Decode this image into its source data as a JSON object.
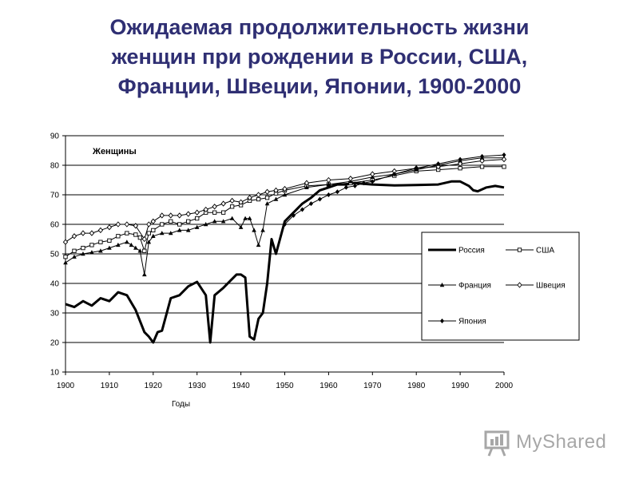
{
  "slide": {
    "title_lines": [
      "Ожидаемая продолжительность жизни",
      "женщин при рождении в России, США,",
      "Франции, Швеции, Японии, 1900-2000"
    ]
  },
  "logo": {
    "text": "MyShared"
  },
  "chart_data": {
    "type": "line",
    "title": "Женщины",
    "xlabel": "Годы",
    "ylabel": "",
    "xlim": [
      1900,
      2000
    ],
    "ylim": [
      10,
      90
    ],
    "x_ticks": [
      1900,
      1910,
      1920,
      1930,
      1940,
      1950,
      1960,
      1970,
      1980,
      1990,
      2000
    ],
    "y_ticks": [
      10,
      20,
      30,
      40,
      50,
      60,
      70,
      80,
      90
    ],
    "grid": "horizontal",
    "legend_position": "right",
    "series": [
      {
        "name": "Россия",
        "color": "#000000",
        "marker": "none",
        "line_width": 3,
        "x": [
          1900,
          1902,
          1904,
          1906,
          1908,
          1910,
          1912,
          1914,
          1916,
          1918,
          1919,
          1920,
          1921,
          1922,
          1924,
          1926,
          1928,
          1930,
          1932,
          1933,
          1934,
          1936,
          1938,
          1939,
          1940,
          1941,
          1942,
          1943,
          1944,
          1945,
          1946,
          1947,
          1948,
          1950,
          1952,
          1954,
          1956,
          1958,
          1960,
          1962,
          1964,
          1966,
          1968,
          1970,
          1975,
          1980,
          1985,
          1988,
          1990,
          1992,
          1993,
          1994,
          1996,
          1998,
          2000
        ],
        "y": [
          33,
          32,
          34,
          32.5,
          35,
          34,
          37,
          36,
          31,
          23.5,
          22,
          20,
          23.5,
          24,
          35,
          36,
          39,
          40.5,
          36,
          20,
          36,
          38.5,
          41.5,
          43,
          43,
          42,
          22,
          21,
          28,
          30,
          40,
          55,
          50,
          61,
          64,
          67,
          69,
          71.5,
          72.5,
          73.5,
          73.5,
          74,
          73.7,
          73.5,
          73.2,
          73.3,
          73.5,
          74.5,
          74.5,
          73,
          71.5,
          71.2,
          72.5,
          73,
          72.5
        ]
      },
      {
        "name": "США",
        "color": "#000000",
        "marker": "square",
        "line_width": 1,
        "x": [
          1900,
          1902,
          1904,
          1906,
          1908,
          1910,
          1912,
          1914,
          1916,
          1917,
          1918,
          1919,
          1920,
          1922,
          1924,
          1926,
          1928,
          1930,
          1932,
          1934,
          1936,
          1938,
          1940,
          1942,
          1944,
          1946,
          1948,
          1950,
          1955,
          1960,
          1965,
          1970,
          1975,
          1980,
          1985,
          1990,
          1995,
          2000
        ],
        "y": [
          49,
          51,
          52,
          53,
          54,
          54.5,
          56,
          57,
          56.5,
          55.5,
          51,
          57,
          58,
          60,
          61,
          60,
          61,
          62,
          64,
          64,
          64,
          66,
          66.5,
          68,
          68.5,
          69,
          70.5,
          71.5,
          73,
          73.5,
          74,
          75,
          76.5,
          78,
          78.5,
          79,
          79.5,
          79.5
        ]
      },
      {
        "name": "Франция",
        "color": "#000000",
        "marker": "triangle",
        "line_width": 1,
        "x": [
          1900,
          1902,
          1904,
          1906,
          1908,
          1910,
          1912,
          1914,
          1915,
          1916,
          1917,
          1918,
          1919,
          1920,
          1922,
          1924,
          1926,
          1928,
          1930,
          1932,
          1934,
          1936,
          1938,
          1940,
          1941,
          1942,
          1943,
          1944,
          1945,
          1946,
          1948,
          1950,
          1955,
          1960,
          1965,
          1970,
          1975,
          1980,
          1985,
          1990,
          1995,
          2000
        ],
        "y": [
          47,
          49,
          50,
          50.5,
          51,
          52,
          53,
          54,
          53,
          52,
          51,
          43,
          54,
          56,
          57,
          57,
          58,
          58,
          59,
          60,
          61,
          61,
          62,
          59,
          62,
          62,
          58,
          53,
          58,
          67,
          68.5,
          70,
          72.5,
          73.5,
          74.5,
          76,
          77,
          78.5,
          80,
          81.5,
          82.5,
          82.5
        ]
      },
      {
        "name": "Швеция",
        "color": "#000000",
        "marker": "diamond",
        "line_width": 1,
        "x": [
          1900,
          1902,
          1904,
          1906,
          1908,
          1910,
          1912,
          1914,
          1916,
          1918,
          1919,
          1920,
          1922,
          1924,
          1926,
          1928,
          1930,
          1932,
          1934,
          1936,
          1938,
          1940,
          1942,
          1944,
          1946,
          1948,
          1950,
          1955,
          1960,
          1965,
          1970,
          1975,
          1980,
          1985,
          1990,
          1995,
          2000
        ],
        "y": [
          54,
          56,
          57,
          57,
          58,
          59,
          60,
          60,
          59.5,
          55,
          60,
          61,
          63,
          63,
          63,
          63.5,
          64,
          65,
          66,
          67,
          68,
          67.5,
          69,
          70,
          71,
          71.5,
          72,
          74,
          75,
          75.5,
          77,
          78,
          79,
          79.5,
          80.5,
          81.5,
          82
        ]
      },
      {
        "name": "Япония",
        "color": "#000000",
        "marker": "filled-diamond",
        "line_width": 1,
        "x": [
          1950,
          1952,
          1954,
          1956,
          1958,
          1960,
          1962,
          1964,
          1966,
          1968,
          1970,
          1975,
          1980,
          1985,
          1990,
          1995,
          2000
        ],
        "y": [
          60,
          63,
          65,
          67,
          68.5,
          70,
          71,
          72.5,
          73,
          74,
          74.5,
          77,
          79,
          80.5,
          82,
          83,
          83.5
        ]
      }
    ]
  }
}
